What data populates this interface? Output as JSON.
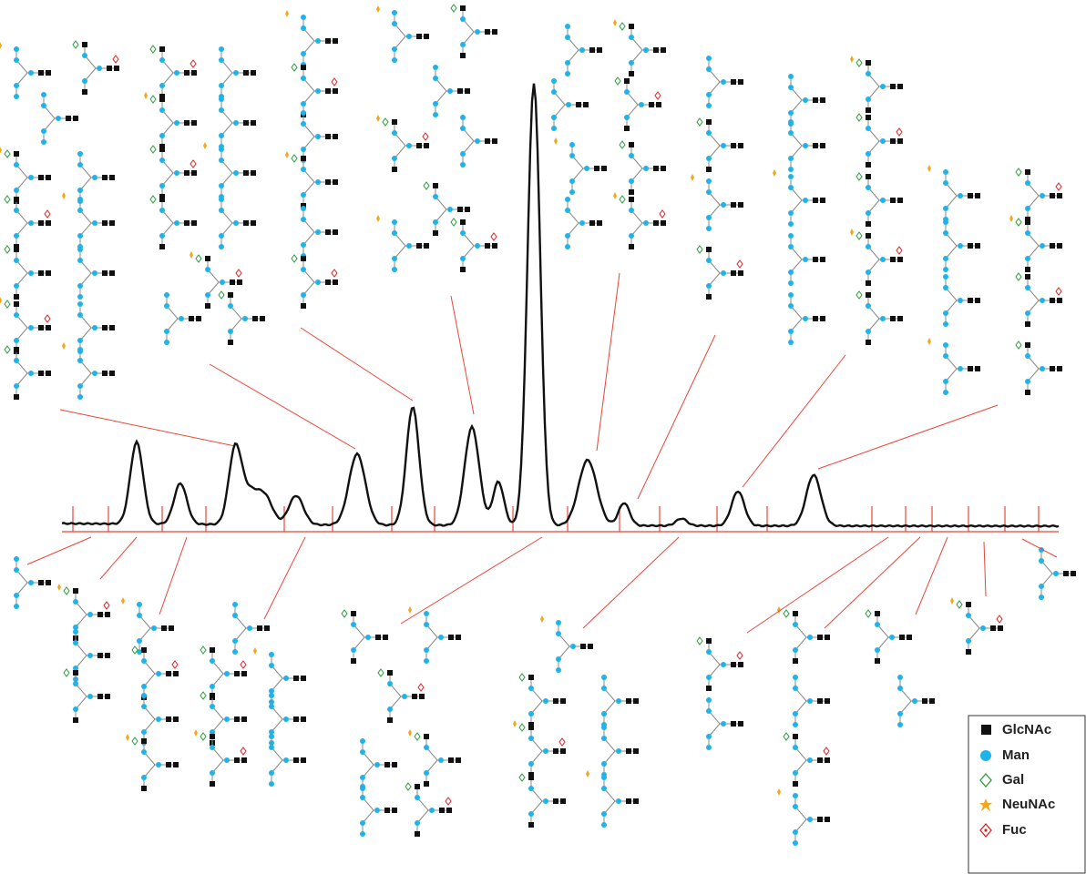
{
  "legend": [
    "GlcNAc",
    "Man",
    "Gal",
    "NeuNAc",
    "Fuc"
  ]
}
